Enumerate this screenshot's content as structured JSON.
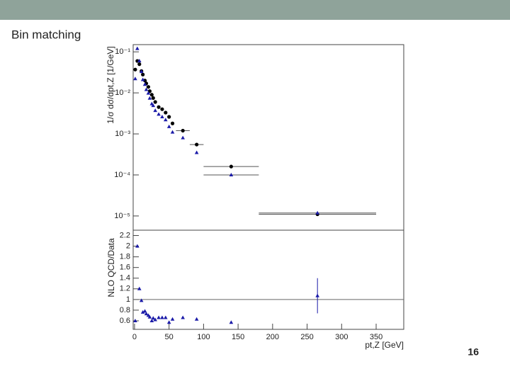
{
  "header": {
    "title": "Bin matching",
    "page_number": "16"
  },
  "chart_data": [
    {
      "type": "scatter",
      "ylabel": "1/σ dσ/dpt,Z [1/GeV]",
      "log_y": true,
      "xlim": [
        -2,
        390
      ],
      "ylim": [
        4.5e-06,
        0.15
      ],
      "yticks": [
        {
          "value": 0.1,
          "label": "10⁻¹"
        },
        {
          "value": 0.01,
          "label": "10⁻²"
        },
        {
          "value": 0.001,
          "label": "10⁻³"
        },
        {
          "value": 0.0001,
          "label": "10⁻⁴"
        },
        {
          "value": 1e-05,
          "label": "10⁻⁵"
        }
      ],
      "x": [
        1,
        4,
        7,
        10,
        12,
        15,
        17,
        20,
        22,
        25,
        27,
        30,
        35,
        40,
        45,
        50,
        55,
        70,
        90,
        140,
        265
      ],
      "series": [
        {
          "marker": "circle",
          "color": "#000000",
          "values": [
            0.037,
            0.06,
            0.05,
            0.034,
            0.028,
            0.02,
            0.017,
            0.014,
            0.011,
            0.009,
            0.0075,
            0.006,
            0.0045,
            0.004,
            0.0033,
            0.0026,
            0.0018,
            0.0012,
            0.00055,
            0.00016,
            1.1e-05
          ],
          "xerr": [
            null,
            null,
            null,
            null,
            null,
            null,
            null,
            null,
            null,
            null,
            null,
            null,
            null,
            null,
            null,
            null,
            null,
            10,
            10,
            40,
            85
          ]
        },
        {
          "marker": "triangle",
          "color": "#1a1aa8",
          "values": [
            0.022,
            0.12,
            0.06,
            0.033,
            0.021,
            0.016,
            0.012,
            0.0098,
            0.0074,
            0.0054,
            0.0049,
            0.0037,
            0.003,
            0.0026,
            0.0022,
            0.0015,
            0.0011,
            0.0008,
            0.00035,
            0.0001,
            1.18e-05
          ],
          "xerr": [
            null,
            null,
            null,
            null,
            null,
            null,
            null,
            null,
            null,
            null,
            null,
            null,
            null,
            null,
            null,
            null,
            null,
            null,
            null,
            40,
            85
          ]
        }
      ]
    },
    {
      "type": "scatter",
      "ylabel": "NLO QCD/Data",
      "xlabel": "pt,Z [GeV]",
      "log_y": false,
      "xlim": [
        -2,
        390
      ],
      "ylim": [
        0.44,
        2.3
      ],
      "xticks": [
        0,
        50,
        100,
        150,
        200,
        250,
        300,
        350
      ],
      "yticks": [
        0.6,
        0.8,
        1,
        1.2,
        1.4,
        1.6,
        1.8,
        2,
        2.2
      ],
      "refline": 1,
      "x": [
        1,
        4,
        7,
        10,
        12,
        15,
        17,
        20,
        22,
        25,
        27,
        30,
        35,
        40,
        45,
        50,
        55,
        70,
        90,
        140,
        265
      ],
      "series": [
        {
          "marker": "triangle",
          "color": "#1a1aa8",
          "values": [
            0.6,
            2.0,
            1.2,
            0.98,
            0.76,
            0.78,
            0.73,
            0.7,
            0.67,
            0.6,
            0.65,
            0.62,
            0.66,
            0.66,
            0.66,
            0.57,
            0.63,
            0.66,
            0.63,
            0.57,
            1.07
          ],
          "yerr": [
            null,
            null,
            null,
            null,
            null,
            null,
            null,
            null,
            null,
            null,
            null,
            null,
            null,
            null,
            null,
            null,
            null,
            null,
            null,
            null,
            0.33
          ]
        }
      ]
    }
  ]
}
